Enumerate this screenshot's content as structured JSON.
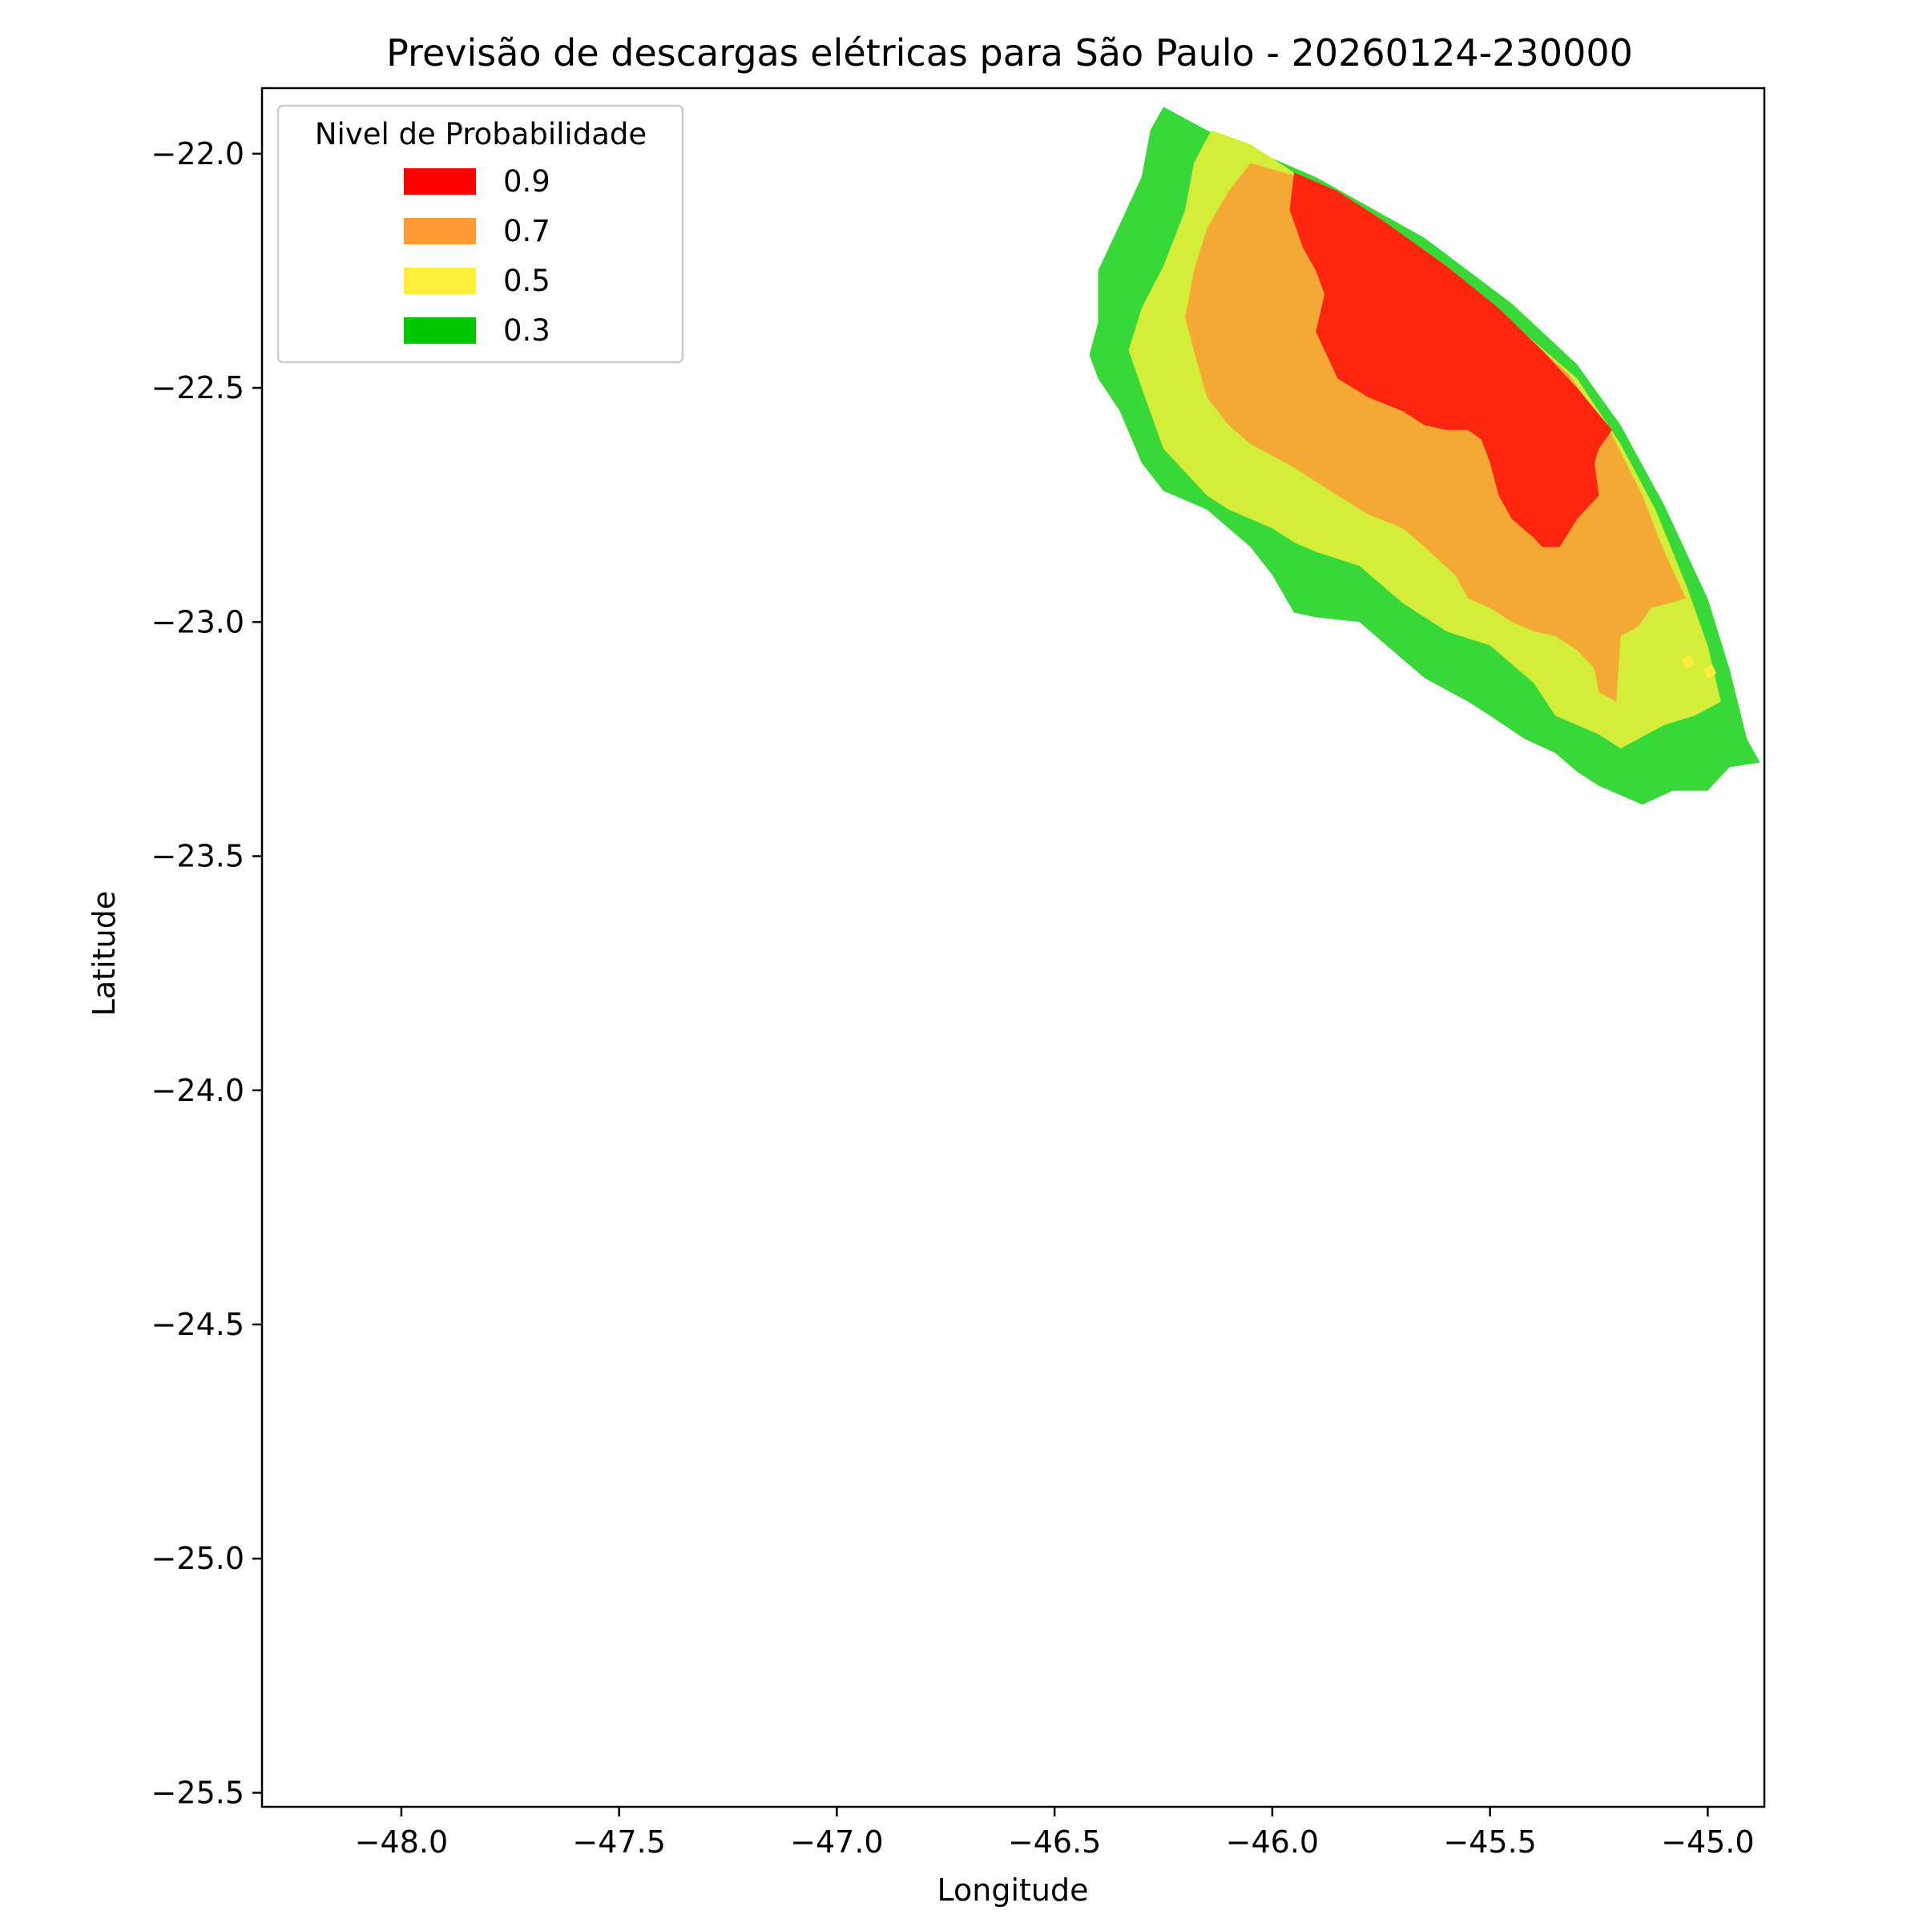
{
  "chart_data": {
    "type": "filled-contour-map",
    "title": "Previsão de descargas elétricas para São Paulo - 20260124-230000",
    "xlabel": "Longitude",
    "ylabel": "Latitude",
    "xlim": [
      -48.32,
      -44.87
    ],
    "ylim": [
      -25.53,
      -21.86
    ],
    "x_ticks": [
      -48.0,
      -47.5,
      -47.0,
      -46.5,
      -46.0,
      -45.5,
      -45.0
    ],
    "x_tick_labels": [
      "−48.0",
      "−47.5",
      "−47.0",
      "−46.5",
      "−46.0",
      "−45.5",
      "−45.0"
    ],
    "y_ticks": [
      -22.0,
      -22.5,
      -23.0,
      -23.5,
      -24.0,
      -24.5,
      -25.0,
      -25.5
    ],
    "y_tick_labels": [
      "−22.0",
      "−22.5",
      "−23.0",
      "−23.5",
      "−24.0",
      "−24.5",
      "−25.0",
      "−25.5"
    ],
    "grid": false,
    "legend": {
      "title": "Nivel de Probabilidade",
      "placement": "top-left",
      "entries": [
        {
          "label": "0.9",
          "color": "#ff0000"
        },
        {
          "label": "0.7",
          "color": "#ff9933"
        },
        {
          "label": "0.5",
          "color": "#ffef3a"
        },
        {
          "label": "0.3",
          "color": "#00c800"
        }
      ]
    },
    "regions": [
      {
        "level": "0.3",
        "color": "#38d838",
        "polygon": [
          [
            -46.25,
            -21.9
          ],
          [
            -46.15,
            -21.95
          ],
          [
            -45.9,
            -22.05
          ],
          [
            -45.65,
            -22.18
          ],
          [
            -45.45,
            -22.32
          ],
          [
            -45.3,
            -22.45
          ],
          [
            -45.2,
            -22.58
          ],
          [
            -45.1,
            -22.75
          ],
          [
            -45.0,
            -22.95
          ],
          [
            -44.95,
            -23.1
          ],
          [
            -44.91,
            -23.25
          ],
          [
            -44.88,
            -23.3
          ],
          [
            -44.95,
            -23.31
          ],
          [
            -45.0,
            -23.36
          ],
          [
            -45.05,
            -23.36
          ],
          [
            -45.08,
            -23.36
          ],
          [
            -45.15,
            -23.39
          ],
          [
            -45.2,
            -23.37
          ],
          [
            -45.25,
            -23.35
          ],
          [
            -45.3,
            -23.32
          ],
          [
            -45.35,
            -23.28
          ],
          [
            -45.42,
            -23.25
          ],
          [
            -45.5,
            -23.2
          ],
          [
            -45.55,
            -23.17
          ],
          [
            -45.65,
            -23.12
          ],
          [
            -45.75,
            -23.04
          ],
          [
            -45.8,
            -23.0
          ],
          [
            -45.9,
            -22.99
          ],
          [
            -45.95,
            -22.98
          ],
          [
            -46.0,
            -22.9
          ],
          [
            -46.05,
            -22.84
          ],
          [
            -46.1,
            -22.8
          ],
          [
            -46.15,
            -22.76
          ],
          [
            -46.25,
            -22.72
          ],
          [
            -46.3,
            -22.66
          ],
          [
            -46.35,
            -22.55
          ],
          [
            -46.4,
            -22.48
          ],
          [
            -46.42,
            -22.43
          ],
          [
            -46.4,
            -22.36
          ],
          [
            -46.4,
            -22.25
          ],
          [
            -46.35,
            -22.15
          ],
          [
            -46.3,
            -22.05
          ],
          [
            -46.28,
            -21.95
          ]
        ]
      },
      {
        "level": "0.5",
        "color": "#d4ed38",
        "polygon": [
          [
            -46.14,
            -21.95
          ],
          [
            -46.05,
            -21.98
          ],
          [
            -45.95,
            -22.04
          ],
          [
            -45.8,
            -22.12
          ],
          [
            -45.6,
            -22.25
          ],
          [
            -45.45,
            -22.36
          ],
          [
            -45.3,
            -22.48
          ],
          [
            -45.2,
            -22.62
          ],
          [
            -45.12,
            -22.76
          ],
          [
            -45.05,
            -22.92
          ],
          [
            -45.0,
            -23.05
          ],
          [
            -44.97,
            -23.17
          ],
          [
            -45.03,
            -23.2
          ],
          [
            -45.1,
            -23.22
          ],
          [
            -45.18,
            -23.26
          ],
          [
            -45.2,
            -23.27
          ],
          [
            -45.25,
            -23.24
          ],
          [
            -45.3,
            -23.22
          ],
          [
            -45.35,
            -23.2
          ],
          [
            -45.4,
            -23.13
          ],
          [
            -45.5,
            -23.05
          ],
          [
            -45.6,
            -23.02
          ],
          [
            -45.7,
            -22.96
          ],
          [
            -45.8,
            -22.88
          ],
          [
            -45.9,
            -22.85
          ],
          [
            -45.95,
            -22.83
          ],
          [
            -46.0,
            -22.8
          ],
          [
            -46.1,
            -22.76
          ],
          [
            -46.15,
            -22.73
          ],
          [
            -46.2,
            -22.68
          ],
          [
            -46.25,
            -22.63
          ],
          [
            -46.3,
            -22.5
          ],
          [
            -46.33,
            -22.42
          ],
          [
            -46.3,
            -22.33
          ],
          [
            -46.25,
            -22.24
          ],
          [
            -46.2,
            -22.12
          ],
          [
            -46.18,
            -22.02
          ]
        ]
      },
      {
        "level": "0.7",
        "color": "#f5a935",
        "polygon": [
          [
            -46.05,
            -22.02
          ],
          [
            -45.9,
            -22.06
          ],
          [
            -45.75,
            -22.14
          ],
          [
            -45.6,
            -22.24
          ],
          [
            -45.45,
            -22.36
          ],
          [
            -45.32,
            -22.47
          ],
          [
            -45.22,
            -22.6
          ],
          [
            -45.15,
            -22.73
          ],
          [
            -45.1,
            -22.85
          ],
          [
            -45.05,
            -22.95
          ],
          [
            -45.13,
            -22.97
          ],
          [
            -45.16,
            -23.01
          ],
          [
            -45.2,
            -23.03
          ],
          [
            -45.21,
            -23.17
          ],
          [
            -45.25,
            -23.15
          ],
          [
            -45.26,
            -23.1
          ],
          [
            -45.3,
            -23.06
          ],
          [
            -45.35,
            -23.03
          ],
          [
            -45.4,
            -23.02
          ],
          [
            -45.45,
            -23.0
          ],
          [
            -45.5,
            -22.97
          ],
          [
            -45.55,
            -22.95
          ],
          [
            -45.58,
            -22.9
          ],
          [
            -45.65,
            -22.84
          ],
          [
            -45.7,
            -22.8
          ],
          [
            -45.78,
            -22.77
          ],
          [
            -45.85,
            -22.73
          ],
          [
            -45.9,
            -22.7
          ],
          [
            -45.95,
            -22.67
          ],
          [
            -46.05,
            -22.62
          ],
          [
            -46.1,
            -22.58
          ],
          [
            -46.15,
            -22.52
          ],
          [
            -46.18,
            -22.42
          ],
          [
            -46.2,
            -22.35
          ],
          [
            -46.18,
            -22.25
          ],
          [
            -46.15,
            -22.16
          ],
          [
            -46.1,
            -22.08
          ]
        ]
      },
      {
        "level": "0.9",
        "color": "#ff2610",
        "polygon": [
          [
            -45.95,
            -22.04
          ],
          [
            -45.85,
            -22.08
          ],
          [
            -45.75,
            -22.14
          ],
          [
            -45.6,
            -22.24
          ],
          [
            -45.48,
            -22.33
          ],
          [
            -45.38,
            -22.42
          ],
          [
            -45.3,
            -22.5
          ],
          [
            -45.22,
            -22.59
          ],
          [
            -45.25,
            -22.63
          ],
          [
            -45.26,
            -22.66
          ],
          [
            -45.25,
            -22.73
          ],
          [
            -45.3,
            -22.78
          ],
          [
            -45.34,
            -22.84
          ],
          [
            -45.38,
            -22.84
          ],
          [
            -45.4,
            -22.82
          ],
          [
            -45.45,
            -22.78
          ],
          [
            -45.48,
            -22.73
          ],
          [
            -45.5,
            -22.66
          ],
          [
            -45.52,
            -22.61
          ],
          [
            -45.55,
            -22.59
          ],
          [
            -45.6,
            -22.59
          ],
          [
            -45.65,
            -22.58
          ],
          [
            -45.7,
            -22.55
          ],
          [
            -45.78,
            -22.52
          ],
          [
            -45.85,
            -22.48
          ],
          [
            -45.88,
            -22.42
          ],
          [
            -45.9,
            -22.38
          ],
          [
            -45.88,
            -22.3
          ],
          [
            -45.9,
            -22.25
          ],
          [
            -45.93,
            -22.2
          ],
          [
            -45.96,
            -22.12
          ]
        ]
      },
      {
        "level": "0.5",
        "color": "#ffef3a",
        "polygon": [
          [
            -45.06,
            -23.08
          ],
          [
            -45.04,
            -23.07
          ],
          [
            -45.03,
            -23.09
          ],
          [
            -45.05,
            -23.1
          ]
        ]
      },
      {
        "level": "0.5",
        "color": "#ffef3a",
        "polygon": [
          [
            -45.01,
            -23.1
          ],
          [
            -44.99,
            -23.09
          ],
          [
            -44.98,
            -23.11
          ],
          [
            -45.0,
            -23.12
          ]
        ]
      }
    ]
  }
}
